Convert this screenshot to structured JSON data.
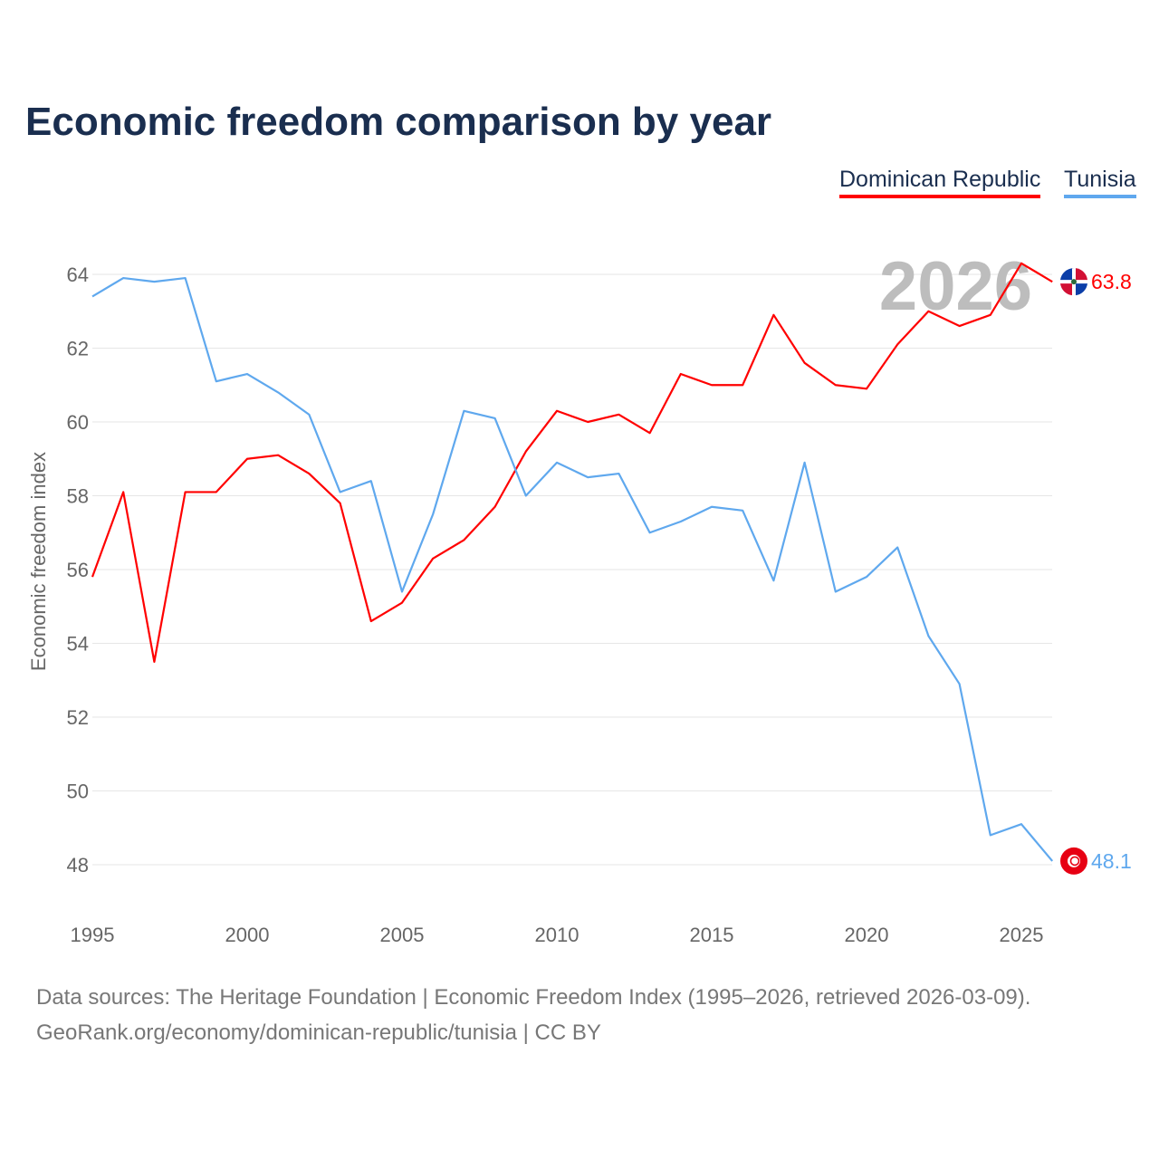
{
  "chart_data": {
    "type": "line",
    "title": "Economic freedom comparison by year",
    "xlabel": "",
    "ylabel": "Economic freedom index",
    "xlim": [
      1995,
      2026
    ],
    "ylim": [
      47,
      65
    ],
    "xticks": [
      1995,
      2000,
      2005,
      2010,
      2015,
      2020,
      2025
    ],
    "yticks": [
      48,
      50,
      52,
      54,
      56,
      58,
      60,
      62,
      64
    ],
    "grid": true,
    "legend_position": "top-right",
    "year_watermark": "2026",
    "x": [
      1995,
      1996,
      1997,
      1998,
      1999,
      2000,
      2001,
      2002,
      2003,
      2004,
      2005,
      2006,
      2007,
      2008,
      2009,
      2010,
      2011,
      2012,
      2013,
      2014,
      2015,
      2016,
      2017,
      2018,
      2019,
      2020,
      2021,
      2022,
      2023,
      2024,
      2025,
      2026
    ],
    "series": [
      {
        "name": "Dominican Republic",
        "color": "#ff0000",
        "end_label": "63.8",
        "values": [
          55.8,
          58.1,
          53.5,
          58.1,
          58.1,
          59.0,
          59.1,
          58.6,
          57.8,
          54.6,
          55.1,
          56.3,
          56.8,
          57.7,
          59.2,
          60.3,
          60.0,
          60.2,
          59.7,
          61.3,
          61.0,
          61.0,
          62.9,
          61.6,
          61.0,
          60.9,
          62.1,
          63.0,
          62.6,
          62.9,
          64.3,
          63.8
        ]
      },
      {
        "name": "Tunisia",
        "color": "#5fa8ee",
        "end_label": "48.1",
        "values": [
          63.4,
          63.9,
          63.8,
          63.9,
          61.1,
          61.3,
          60.8,
          60.2,
          58.1,
          58.4,
          55.4,
          57.5,
          60.3,
          60.1,
          58.0,
          58.9,
          58.5,
          58.6,
          57.0,
          57.3,
          57.7,
          57.6,
          55.7,
          58.9,
          55.4,
          55.8,
          56.6,
          54.2,
          52.9,
          48.8,
          49.1,
          48.1
        ]
      }
    ]
  },
  "footer": {
    "line1": "Data sources: The Heritage Foundation | Economic Freedom Index (1995–2026, retrieved 2026-03-09).",
    "line2": "GeoRank.org/economy/dominican-republic/tunisia | CC BY"
  }
}
